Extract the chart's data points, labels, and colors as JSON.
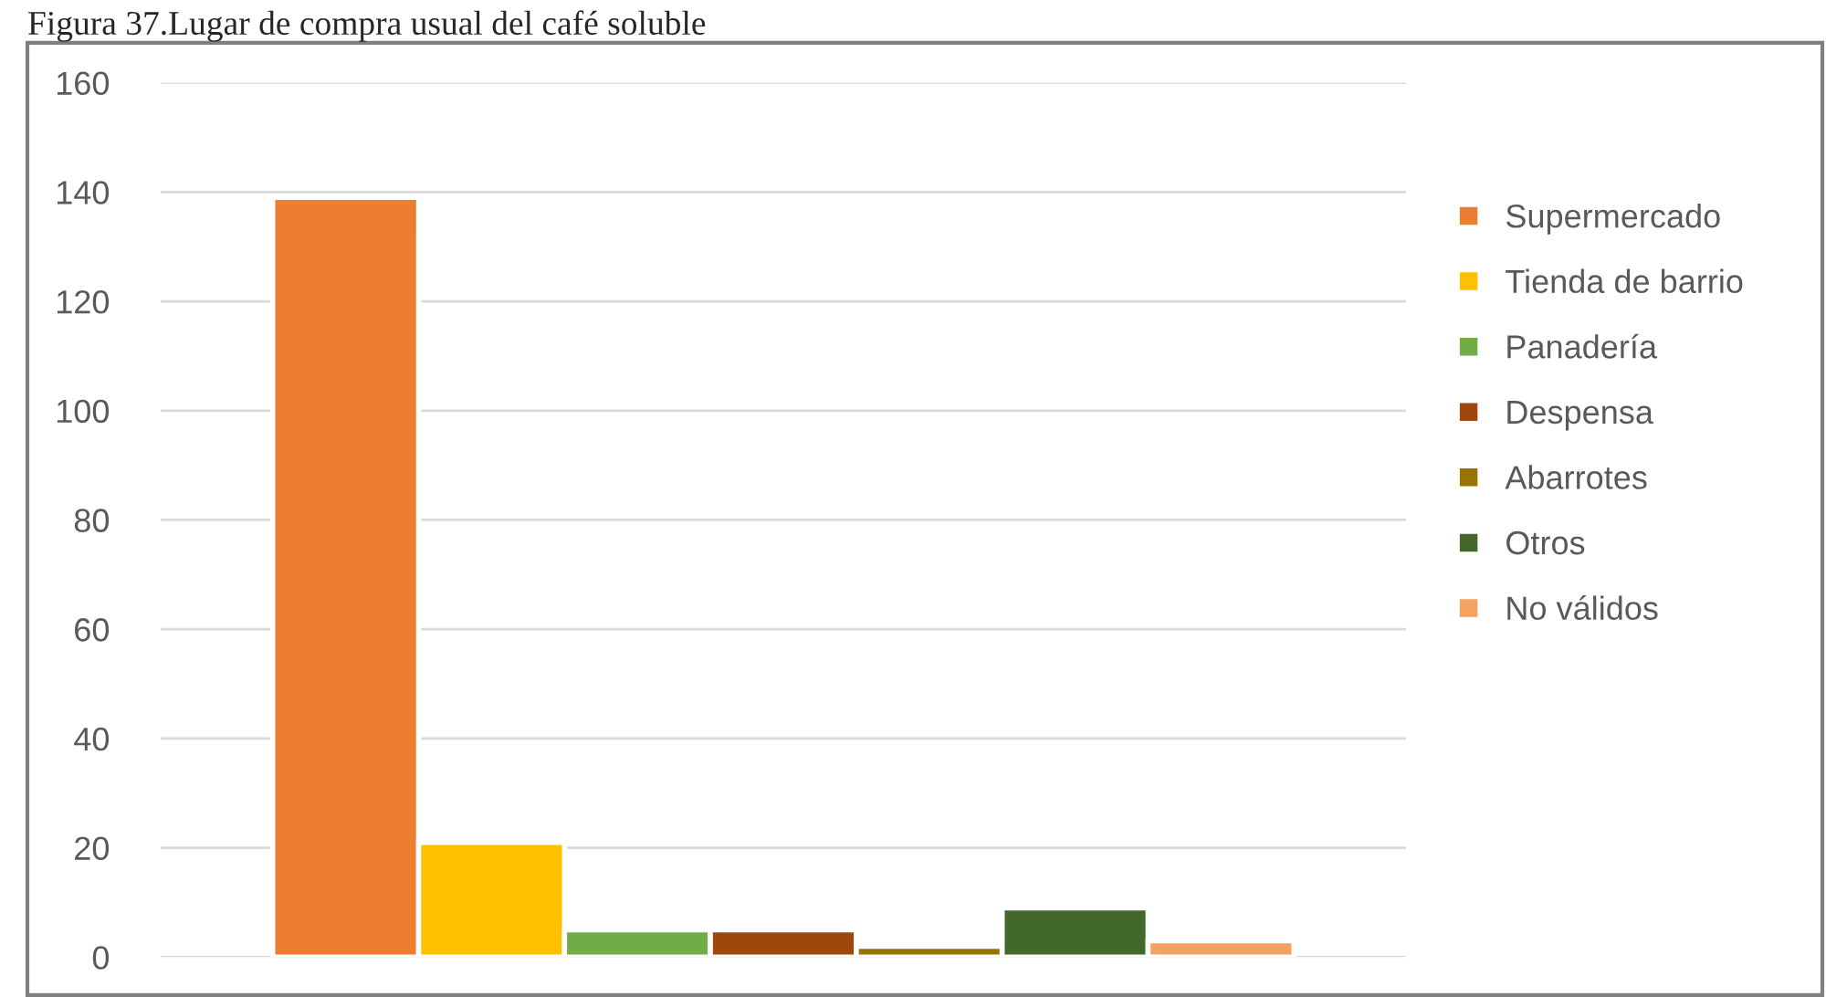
{
  "chart_data": {
    "type": "bar",
    "title": "Figura 37.Lugar de compra usual del café soluble",
    "categories": [
      null
    ],
    "series": [
      {
        "name": "Supermercado",
        "color": "#ed7d31",
        "values": [
          139
        ]
      },
      {
        "name": "Tienda de barrio",
        "color": "#ffc000",
        "values": [
          21
        ]
      },
      {
        "name": "Panadería",
        "color": "#70ad47",
        "values": [
          5
        ]
      },
      {
        "name": "Despensa",
        "color": "#9e480e",
        "values": [
          5
        ]
      },
      {
        "name": "Abarrotes",
        "color": "#997300",
        "values": [
          2
        ]
      },
      {
        "name": "Otros",
        "color": "#43682b",
        "values": [
          9
        ]
      },
      {
        "name": "No válidos",
        "color": "#f4a261",
        "values": [
          3
        ]
      }
    ],
    "ylim": [
      0,
      160
    ],
    "yticks": [
      0,
      20,
      40,
      60,
      80,
      100,
      120,
      140,
      160
    ],
    "grid": "y",
    "legend": "right"
  }
}
